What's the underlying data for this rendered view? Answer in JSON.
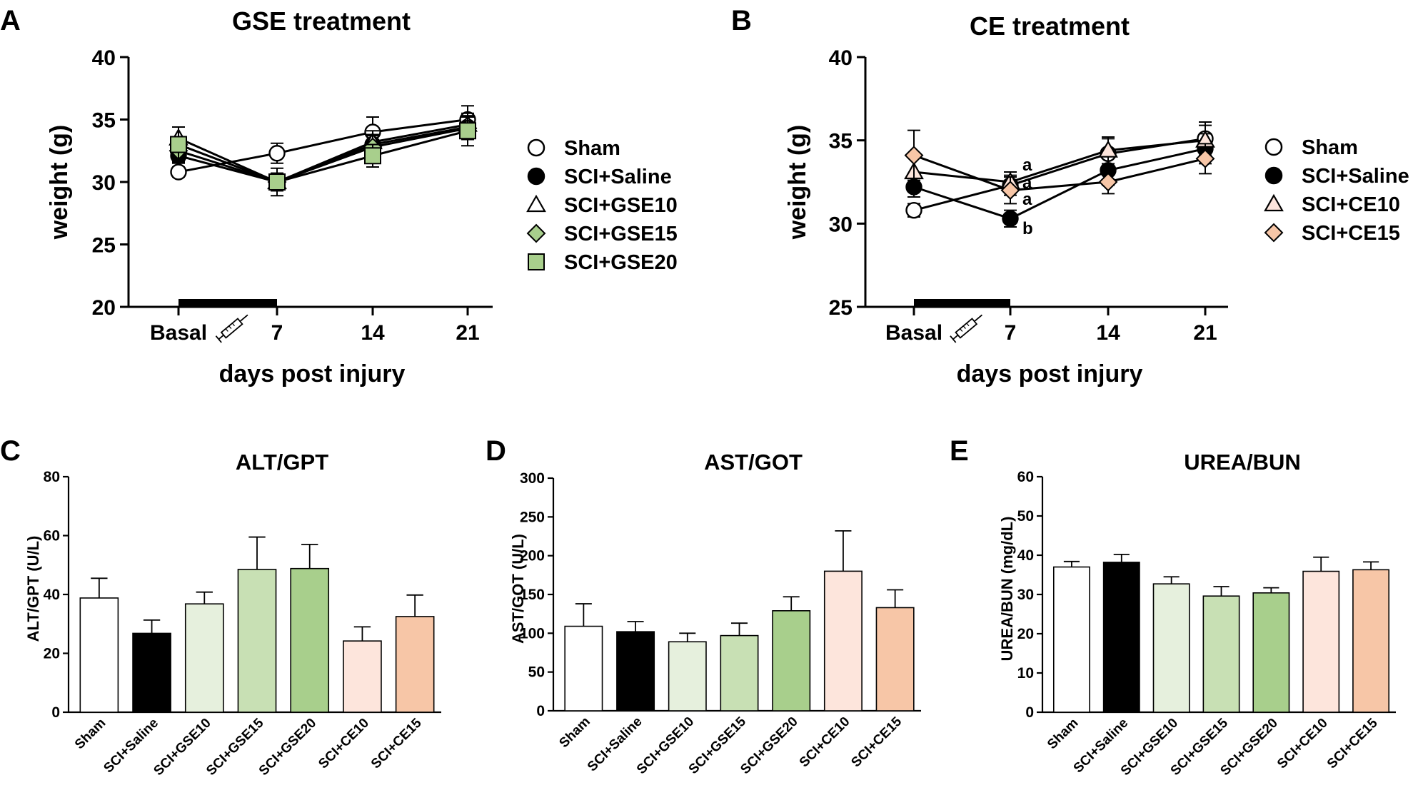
{
  "colors": {
    "sham": "#ffffff",
    "saline": "#000000",
    "gse10": "#e6f0dd",
    "gse15": "#c8e0b4",
    "gse20": "#a8cf8c",
    "ce10": "#fde5dc",
    "ce15": "#f7c6a7"
  },
  "chart_data": [
    {
      "panel": "A",
      "type": "line",
      "title": "GSE treatment",
      "xlabel": "days post injury",
      "ylabel": "weight (g)",
      "x": [
        "Basal",
        "7",
        "14",
        "21"
      ],
      "ylim": [
        20,
        40
      ],
      "yticks": [
        "20",
        "25",
        "30",
        "35",
        "40"
      ],
      "treatment_marker": "syringe-icon",
      "series": [
        {
          "name": "Sham",
          "marker": "circle",
          "fill": "#ffffff",
          "values": [
            30.8,
            32.3,
            34.0,
            35.0
          ],
          "err": [
            0.4,
            0.8,
            1.2,
            1.1
          ]
        },
        {
          "name": "SCI+Saline",
          "marker": "circle",
          "fill": "#000000",
          "values": [
            32.1,
            30.0,
            33.0,
            34.4
          ],
          "err": [
            0.6,
            0.7,
            0.8,
            0.9
          ]
        },
        {
          "name": "SCI+GSE10",
          "marker": "triangle",
          "fill": "#ffffff",
          "values": [
            33.5,
            30.0,
            33.2,
            34.6
          ],
          "err": [
            0.9,
            0.7,
            0.9,
            0.9
          ]
        },
        {
          "name": "SCI+GSE15",
          "marker": "diamond",
          "fill": "#a8cf8c",
          "values": [
            32.5,
            30.0,
            32.8,
            34.3
          ],
          "err": [
            0.8,
            0.7,
            0.9,
            0.9
          ]
        },
        {
          "name": "SCI+GSE20",
          "marker": "square",
          "fill": "#a8cf8c",
          "values": [
            33.0,
            30.0,
            32.1,
            34.1
          ],
          "err": [
            1.4,
            1.1,
            0.9,
            1.2
          ]
        }
      ]
    },
    {
      "panel": "B",
      "type": "line",
      "title": "CE treatment",
      "xlabel": "days post injury",
      "ylabel": "weight (g)",
      "x": [
        "Basal",
        "7",
        "14",
        "21"
      ],
      "ylim": [
        25,
        40
      ],
      "yticks": [
        "25",
        "30",
        "35",
        "40"
      ],
      "treatment_marker": "syringe-icon",
      "annotations": [
        "a",
        "a",
        "a",
        "b"
      ],
      "series": [
        {
          "name": "Sham",
          "marker": "circle",
          "fill": "#ffffff",
          "values": [
            30.8,
            32.3,
            34.2,
            35.1
          ],
          "err": [
            0.4,
            0.6,
            0.9,
            1.0
          ]
        },
        {
          "name": "SCI+Saline",
          "marker": "circle",
          "fill": "#000000",
          "values": [
            32.2,
            30.3,
            33.2,
            34.5
          ],
          "err": [
            0.6,
            0.5,
            0.9,
            0.9
          ]
        },
        {
          "name": "SCI+CE10",
          "marker": "triangle",
          "fill": "#fde5dc",
          "values": [
            33.1,
            32.5,
            34.4,
            35.0
          ],
          "err": [
            0.9,
            0.6,
            0.8,
            0.9
          ]
        },
        {
          "name": "SCI+CE15",
          "marker": "diamond",
          "fill": "#f7c6a7",
          "values": [
            34.1,
            32.0,
            32.5,
            33.9
          ],
          "err": [
            1.5,
            0.8,
            0.7,
            0.9
          ]
        }
      ]
    },
    {
      "panel": "C",
      "type": "bar",
      "title": "ALT/GPT",
      "ylabel": "ALT/GPT (U/L)",
      "ylim": [
        0,
        80
      ],
      "yticks": [
        "0",
        "20",
        "40",
        "60",
        "80"
      ],
      "categories": [
        "Sham",
        "SCI+Saline",
        "SCI+GSE10",
        "SCI+GSE15",
        "SCI+GSE20",
        "SCI+CE10",
        "SCI+CE15"
      ],
      "values": [
        38.8,
        26.8,
        36.8,
        48.5,
        48.8,
        24.2,
        32.5
      ],
      "err": [
        6.7,
        4.5,
        4.0,
        11.0,
        8.2,
        4.8,
        7.3
      ]
    },
    {
      "panel": "D",
      "type": "bar",
      "title": "AST/GOT",
      "ylabel": "AST/GOT (U/L)",
      "ylim": [
        0,
        300
      ],
      "yticks": [
        "0",
        "50",
        "100",
        "150",
        "200",
        "250",
        "300"
      ],
      "categories": [
        "Sham",
        "SCI+Saline",
        "SCI+GSE10",
        "SCI+GSE15",
        "SCI+GSE20",
        "SCI+CE10",
        "SCI+CE15"
      ],
      "values": [
        109,
        102,
        89,
        97,
        129,
        180,
        133
      ],
      "err": [
        29,
        13,
        11,
        16,
        18,
        52,
        23
      ]
    },
    {
      "panel": "E",
      "type": "bar",
      "title": "UREA/BUN",
      "ylabel": "UREA/BUN (mg/dL)",
      "ylim": [
        0,
        60
      ],
      "yticks": [
        "0",
        "10",
        "20",
        "30",
        "40",
        "50",
        "60"
      ],
      "categories": [
        "Sham",
        "SCI+Saline",
        "SCI+GSE10",
        "SCI+GSE15",
        "SCI+GSE20",
        "SCI+CE10",
        "SCI+CE15"
      ],
      "values": [
        37.0,
        38.2,
        32.7,
        29.6,
        30.4,
        35.9,
        36.3
      ],
      "err": [
        1.4,
        2.0,
        1.8,
        2.4,
        1.3,
        3.6,
        2.0
      ]
    }
  ]
}
